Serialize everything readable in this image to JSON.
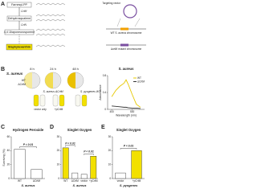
{
  "panel_a": {
    "letter": "A",
    "steps": [
      "Farnesyl-PP",
      "CrtM",
      "Dehydrosqualene",
      "CrtN",
      "4,4'-Diaponeurosporene",
      "Staphyloxanthin"
    ],
    "vector_label": "Targeting vector",
    "wt_label": "WT S. aureus chromosome",
    "mutant_label": "ΔcrtM mutant chromosome"
  },
  "panel_b": {
    "letter": "B",
    "species": "S. aureus",
    "times": [
      "8 h",
      "24 h",
      "48 h"
    ],
    "wt": "WT",
    "mutant": "ΔCrtM",
    "mutant_strain": "S. aureus ΔCrtM",
    "pyogenes": "S. pyogenes WT",
    "vector": "vector only",
    "complement": "+pCrtM"
  },
  "panel_letters": [
    "C",
    "D",
    "E"
  ],
  "charts": [
    {
      "type": "line",
      "title": "S. aureus",
      "x_label": "Wavelength (nm)",
      "y_label": "Absorbance",
      "x": [
        400,
        420,
        440,
        460,
        470,
        480,
        500,
        520,
        540
      ],
      "xlim": [
        380,
        560
      ],
      "xticks": [
        400,
        500
      ],
      "ylim": [
        0,
        0.8
      ],
      "yticks": [
        0,
        0.4,
        0.8
      ],
      "legend": "top-right",
      "series": [
        {
          "name": "WT",
          "color": "#e6c800",
          "values": [
            0.3,
            0.45,
            0.55,
            0.62,
            0.7,
            0.6,
            0.35,
            0.12,
            0.05
          ]
        },
        {
          "name": "ΔCrtM",
          "color": "#333333",
          "values": [
            0.08,
            0.07,
            0.06,
            0.05,
            0.05,
            0.04,
            0.03,
            0.03,
            0.02
          ]
        }
      ]
    },
    {
      "type": "bar",
      "title": "Hydrogen Peroxide",
      "y_label": "Surviving (%)",
      "x_label": "S. aureus",
      "categories": [
        "WT",
        "ΔCrtM"
      ],
      "values": [
        42,
        13
      ],
      "colors": [
        "#ffffff",
        "#ffffff"
      ],
      "ylim": [
        0,
        60
      ],
      "yticks": [
        0,
        20,
        40,
        60
      ],
      "annotations": [
        "P < 0.01"
      ]
    },
    {
      "type": "bar",
      "title": "Singlet Oxygen",
      "x_label": "S. aureus",
      "categories": [
        "WT",
        "ΔCrtM",
        "vector",
        "+pCrtM"
      ],
      "values": [
        22,
        4,
        3,
        16
      ],
      "colors": [
        "#f2e000",
        "#ffffff",
        "#ffffff",
        "#f2e000"
      ],
      "ylim": [
        0,
        30
      ],
      "yticks": [
        0,
        10,
        20,
        30
      ],
      "annotations": [
        "P < 0.01",
        "P < 0.01"
      ]
    },
    {
      "type": "bar",
      "title": "Singlet Oxygen",
      "x_label": "S. pyogenes",
      "categories": [
        "vector",
        "+pCrtM"
      ],
      "values": [
        4,
        20
      ],
      "colors": [
        "#ffffff",
        "#f2e000"
      ],
      "ylim": [
        0,
        30
      ],
      "yticks": [
        0,
        10,
        20,
        30
      ],
      "annotations": [
        "P < 0.01"
      ]
    }
  ]
}
